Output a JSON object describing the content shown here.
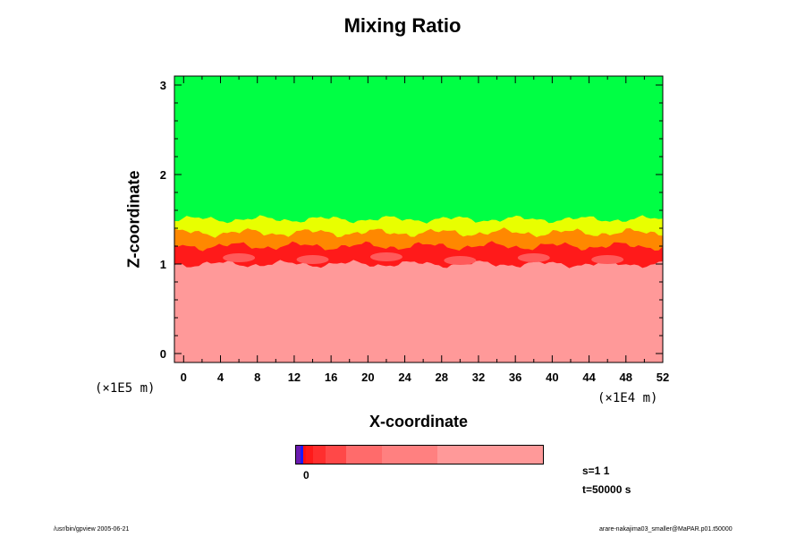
{
  "chart_data": {
    "type": "heatmap",
    "title": "Mixing Ratio",
    "xlabel": "X-coordinate",
    "ylabel": "Z-coordinate",
    "x_scale": "(×1E4 m)",
    "y_scale": "(×1E5 m)",
    "xlim": [
      -1,
      52
    ],
    "ylim": [
      -0.1,
      3.1
    ],
    "x_ticks": [
      "0",
      "4",
      "8",
      "12",
      "16",
      "20",
      "24",
      "28",
      "32",
      "36",
      "40",
      "44",
      "48",
      "52"
    ],
    "y_ticks": [
      "0",
      "1",
      "2",
      "3"
    ],
    "layers": [
      {
        "name": "upper",
        "color": "#00ff44",
        "z_range": [
          1.5,
          3.1
        ]
      },
      {
        "name": "transition-yellow",
        "color": "#e8ff00",
        "z_range": [
          1.35,
          1.5
        ]
      },
      {
        "name": "transition-orange",
        "color": "#ff8800",
        "z_range": [
          1.2,
          1.35
        ]
      },
      {
        "name": "mixing-red",
        "color": "#ff1a1a",
        "z_range": [
          1.0,
          1.2
        ]
      },
      {
        "name": "lower",
        "color": "#ff9999",
        "z_range": [
          -0.1,
          1.0
        ]
      }
    ],
    "colorbar": {
      "label": "0",
      "segments": [
        {
          "color": "#6a1bb0",
          "weight": 3
        },
        {
          "color": "#1a1aff",
          "weight": 2
        },
        {
          "color": "#ff1010",
          "weight": 2
        },
        {
          "color": "#ff1a1a",
          "weight": 5
        },
        {
          "color": "#ff2e2e",
          "weight": 9
        },
        {
          "color": "#ff4848",
          "weight": 15
        },
        {
          "color": "#ff6b6b",
          "weight": 25
        },
        {
          "color": "#ff8080",
          "weight": 40
        },
        {
          "color": "#ff9999",
          "weight": 75
        }
      ]
    }
  },
  "info": {
    "s": "s=1 1",
    "t": "t=50000 s"
  },
  "footer": {
    "left": "/usr/bin/gpview 2005-06-21",
    "right": "arare-nakajima03_smaller@MaPAR.p01.t50000"
  }
}
